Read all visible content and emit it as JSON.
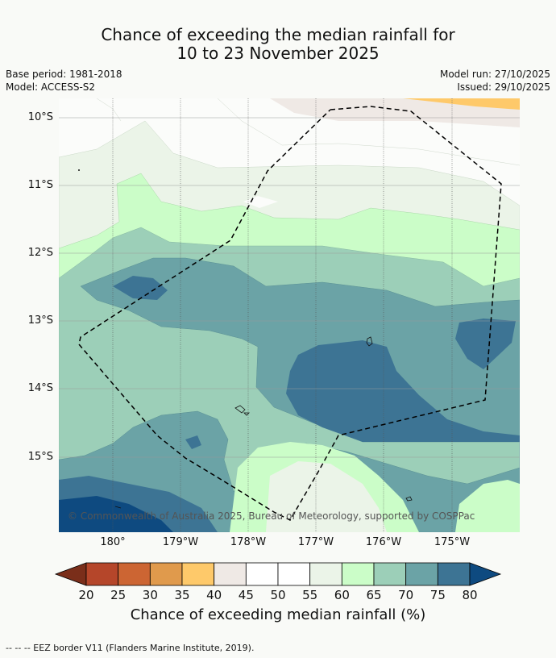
{
  "title": {
    "line1": "Chance of exceeding the median rainfall for",
    "line2": "10 to 23 November 2025"
  },
  "meta": {
    "base_period": "Base period: 1981-2018",
    "model": "Model: ACCESS-S2",
    "model_run": "Model run: 27/10/2025",
    "issued": "Issued: 29/10/2025"
  },
  "axes": {
    "lat_labels": [
      "10°S",
      "11°S",
      "12°S",
      "13°S",
      "14°S",
      "15°S"
    ],
    "lon_labels": [
      "180°",
      "179°W",
      "178°W",
      "177°W",
      "176°W",
      "175°W"
    ]
  },
  "copyright": "© Commonwealth of Australia 2025, Bureau of Meteorology, supported by COSPPac",
  "colorbar": {
    "ticks": [
      "20",
      "25",
      "30",
      "35",
      "40",
      "45",
      "50",
      "55",
      "60",
      "65",
      "70",
      "75",
      "80"
    ],
    "colors": [
      "#7a2e1a",
      "#b5462a",
      "#cc6533",
      "#e09a4c",
      "#fec96a",
      "#efe9e5",
      "#ffffff",
      "#ffffff",
      "#ebf4e8",
      "#cbfdc8",
      "#9ccfb8",
      "#6ba3a6",
      "#3d7494",
      "#0e4a80"
    ],
    "title": "Chance of exceeding median rainfall (%)"
  },
  "footer": "--  --  -- EEZ border V11 (Flanders Marine Institute, 2019)."
}
